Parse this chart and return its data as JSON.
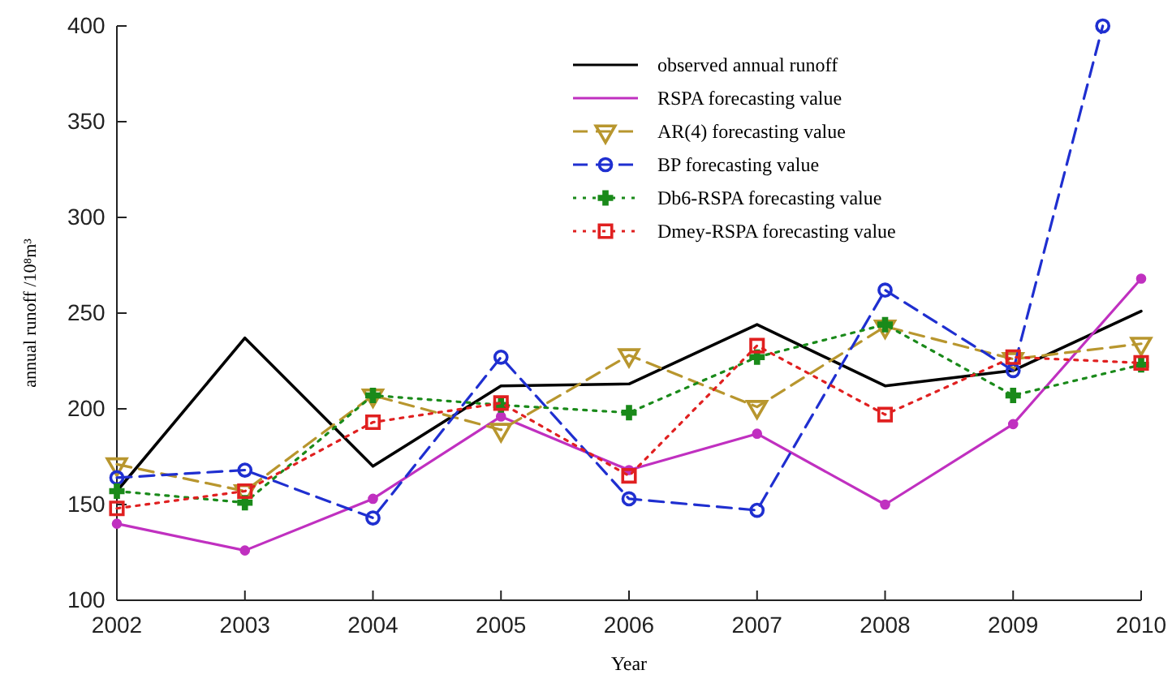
{
  "chart_data": {
    "type": "line",
    "xlabel": "Year",
    "ylabel": "annual runoff /10⁸m³",
    "x": [
      2002,
      2003,
      2004,
      2005,
      2006,
      2007,
      2008,
      2009,
      2010
    ],
    "xlim": [
      2002,
      2010
    ],
    "xticks": [
      2002,
      2003,
      2004,
      2005,
      2006,
      2007,
      2008,
      2009,
      2010
    ],
    "ylim": [
      100,
      400
    ],
    "yticks": [
      100,
      150,
      200,
      250,
      300,
      350,
      400
    ],
    "grid": false,
    "legend": "top right",
    "series": [
      {
        "name": "observed annual runoff",
        "color": "#000000",
        "marker": "none",
        "line_style": "solid",
        "values": [
          157,
          237,
          170,
          212,
          213,
          244,
          212,
          220,
          251
        ]
      },
      {
        "name": "RSPA forecasting value",
        "color": "#c030c0",
        "marker": "circle",
        "line_style": "solid",
        "values": [
          140,
          126,
          153,
          196,
          168,
          187,
          150,
          192,
          268
        ]
      },
      {
        "name": "AR(4) forecasting value",
        "color": "#b8962e",
        "marker": "triangle",
        "line_style": "dashed",
        "values": [
          171,
          157,
          207,
          189,
          228,
          201,
          243,
          226,
          234
        ]
      },
      {
        "name": "BP forecasting value",
        "color": "#1f2fd0",
        "marker": "circle",
        "line_style": "dashed",
        "x": [
          2002,
          2003,
          2004,
          2005,
          2006,
          2007,
          2008,
          2009,
          2009.7
        ],
        "values": [
          164,
          168,
          143,
          227,
          153,
          147,
          262,
          220,
          400
        ]
      },
      {
        "name": "Db6-RSPA forecasting value",
        "color": "#1a8a1a",
        "marker": "cross",
        "line_style": "dotted",
        "values": [
          157,
          151,
          207,
          202,
          198,
          227,
          244,
          207,
          223
        ]
      },
      {
        "name": "Dmey-RSPA forecasting value",
        "color": "#e02020",
        "marker": "square",
        "line_style": "dotted",
        "values": [
          148,
          157,
          193,
          203,
          165,
          233,
          197,
          227,
          224
        ]
      }
    ]
  }
}
